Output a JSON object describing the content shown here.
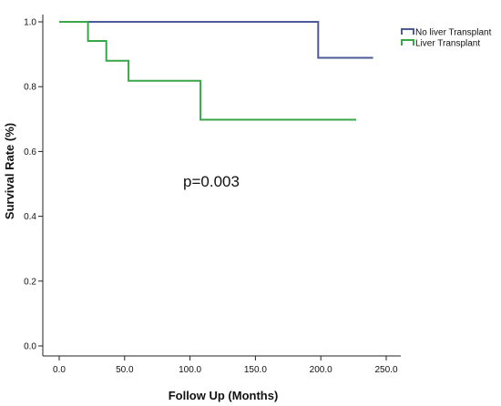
{
  "chart_data": {
    "type": "line",
    "step": true,
    "title": "",
    "xlabel": "Follow Up (Months)",
    "ylabel": "Survival Rate (%)",
    "xlim": [
      0,
      250
    ],
    "ylim": [
      0,
      1.0
    ],
    "x_ticks": [
      0,
      50,
      100,
      150,
      200,
      250
    ],
    "x_tick_labels": [
      "0.0",
      "50.0",
      "100.0",
      "150.0",
      "200.0",
      "250.0"
    ],
    "y_ticks": [
      0,
      0.2,
      0.4,
      0.6,
      0.8,
      1.0
    ],
    "y_tick_labels": [
      "0.0",
      "0.2",
      "0.4",
      "0.6",
      "0.8",
      "1.0"
    ],
    "grid": false,
    "legend_position": "top-right",
    "annotation": "p=0.003",
    "series": [
      {
        "name": "No liver Transplant",
        "color": "#4a5a9a",
        "x": [
          0,
          198,
          198,
          240
        ],
        "y": [
          1.0,
          1.0,
          0.889,
          0.889
        ]
      },
      {
        "name": "Liver Transplant",
        "color": "#3aa64a",
        "x": [
          0,
          22,
          22,
          36,
          36,
          53,
          53,
          108,
          108,
          227
        ],
        "y": [
          1.0,
          1.0,
          0.941,
          0.941,
          0.88,
          0.88,
          0.818,
          0.818,
          0.698,
          0.698
        ]
      }
    ]
  }
}
